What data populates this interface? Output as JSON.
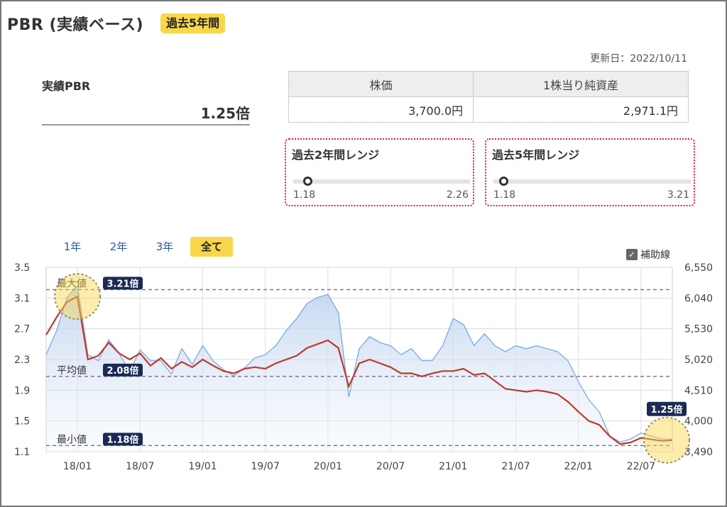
{
  "header": {
    "title": "PBR (実績ベース)",
    "badge": "過去5年間"
  },
  "updated": "更新日：2022/10/11",
  "pbr": {
    "label": "実績PBR",
    "value": "1.25倍"
  },
  "prices": {
    "headers": [
      "株価",
      "1株当り純資産"
    ],
    "values": [
      "3,700.0円",
      "2,971.1円"
    ]
  },
  "ranges": [
    {
      "title": "過去2年間レンジ",
      "min": "1.18",
      "max": "2.26",
      "current": 1.25
    },
    {
      "title": "過去5年間レンジ",
      "min": "1.18",
      "max": "3.21",
      "current": 1.25
    }
  ],
  "tabs": [
    {
      "label": "1年",
      "active": false
    },
    {
      "label": "2年",
      "active": false
    },
    {
      "label": "3年",
      "active": false
    },
    {
      "label": "全て",
      "active": true
    }
  ],
  "aux_checkbox": {
    "label": "補助線",
    "checked": true,
    "check_glyph": "✓"
  },
  "colors": {
    "accent": "#f9d64a",
    "pbr_line": "#c0392b",
    "price_line": "#6fa6dd",
    "label_bg": "#1b2a55",
    "range_border": "#d9202a"
  },
  "chart_data": {
    "type": "line",
    "x_ticks": [
      "18/01",
      "18/07",
      "19/01",
      "19/07",
      "20/01",
      "20/07",
      "21/01",
      "21/07",
      "22/01",
      "22/07"
    ],
    "y_left_ticks": [
      "3.5",
      "3.1",
      "2.7",
      "2.3",
      "1.9",
      "1.5",
      "1.1"
    ],
    "y_right_ticks": [
      "6,550",
      "6,040",
      "5,530",
      "5,020",
      "4,510",
      "4,000",
      "3,490"
    ],
    "ylim_left": [
      1.1,
      3.5
    ],
    "ylim_right": [
      3490,
      6550
    ],
    "reference_lines": [
      {
        "label": "最大値",
        "value": 3.21,
        "tag": "3.21倍"
      },
      {
        "label": "平均値",
        "value": 2.08,
        "tag": "2.08倍"
      },
      {
        "label": "最小値",
        "value": 1.18,
        "tag": "1.18倍"
      }
    ],
    "current_tag": "1.25倍",
    "series": [
      {
        "axis": "left",
        "x": [
          "2017-10",
          "2017-11",
          "2017-12",
          "2018-01",
          "2018-02",
          "2018-03",
          "2018-04",
          "2018-05",
          "2018-06",
          "2018-07",
          "2018-08",
          "2018-09",
          "2018-10",
          "2018-11",
          "2018-12",
          "2019-01",
          "2019-02",
          "2019-03",
          "2019-04",
          "2019-05",
          "2019-06",
          "2019-07",
          "2019-08",
          "2019-09",
          "2019-10",
          "2019-11",
          "2019-12",
          "2020-01",
          "2020-02",
          "2020-03",
          "2020-04",
          "2020-05",
          "2020-06",
          "2020-07",
          "2020-08",
          "2020-09",
          "2020-10",
          "2020-11",
          "2020-12",
          "2021-01",
          "2021-02",
          "2021-03",
          "2021-04",
          "2021-05",
          "2021-06",
          "2021-07",
          "2021-08",
          "2021-09",
          "2021-10",
          "2021-11",
          "2021-12",
          "2022-01",
          "2022-02",
          "2022-03",
          "2022-04",
          "2022-05",
          "2022-06",
          "2022-07",
          "2022-08",
          "2022-09",
          "2022-10"
        ],
        "values": [
          2.62,
          2.85,
          3.05,
          3.12,
          2.3,
          2.35,
          2.52,
          2.38,
          2.3,
          2.38,
          2.22,
          2.32,
          2.18,
          2.27,
          2.2,
          2.3,
          2.22,
          2.15,
          2.12,
          2.18,
          2.2,
          2.18,
          2.25,
          2.3,
          2.35,
          2.45,
          2.5,
          2.55,
          2.45,
          1.95,
          2.25,
          2.3,
          2.25,
          2.2,
          2.12,
          2.12,
          2.08,
          2.12,
          2.15,
          2.15,
          2.18,
          2.1,
          2.12,
          2.02,
          1.92,
          1.9,
          1.88,
          1.9,
          1.88,
          1.85,
          1.75,
          1.62,
          1.5,
          1.45,
          1.3,
          1.2,
          1.22,
          1.28,
          1.26,
          1.24,
          1.25
        ]
      },
      {
        "axis": "right",
        "x": [
          "2017-10",
          "2017-11",
          "2017-12",
          "2018-01",
          "2018-02",
          "2018-03",
          "2018-04",
          "2018-05",
          "2018-06",
          "2018-07",
          "2018-08",
          "2018-09",
          "2018-10",
          "2018-11",
          "2018-12",
          "2019-01",
          "2019-02",
          "2019-03",
          "2019-04",
          "2019-05",
          "2019-06",
          "2019-07",
          "2019-08",
          "2019-09",
          "2019-10",
          "2019-11",
          "2019-12",
          "2020-01",
          "2020-02",
          "2020-03",
          "2020-04",
          "2020-05",
          "2020-06",
          "2020-07",
          "2020-08",
          "2020-09",
          "2020-10",
          "2020-11",
          "2020-12",
          "2021-01",
          "2021-02",
          "2021-03",
          "2021-04",
          "2021-05",
          "2021-06",
          "2021-07",
          "2021-08",
          "2021-09",
          "2021-10",
          "2021-11",
          "2021-12",
          "2022-01",
          "2022-02",
          "2022-03",
          "2022-04",
          "2022-05",
          "2022-06",
          "2022-07",
          "2022-08",
          "2022-09",
          "2022-10"
        ],
        "values": [
          5100,
          5500,
          6050,
          6250,
          5100,
          5000,
          5350,
          5120,
          4820,
          5180,
          5000,
          5000,
          4780,
          5200,
          4940,
          5250,
          5000,
          4850,
          4750,
          4880,
          5050,
          5100,
          5250,
          5500,
          5700,
          5950,
          6050,
          6100,
          5800,
          4400,
          5200,
          5400,
          5300,
          5250,
          5100,
          5200,
          5000,
          5000,
          5250,
          5700,
          5600,
          5250,
          5450,
          5250,
          5150,
          5250,
          5200,
          5250,
          5200,
          5150,
          5000,
          4650,
          4350,
          4150,
          3750,
          3650,
          3700,
          3800,
          3750,
          3700,
          3700
        ]
      }
    ]
  }
}
